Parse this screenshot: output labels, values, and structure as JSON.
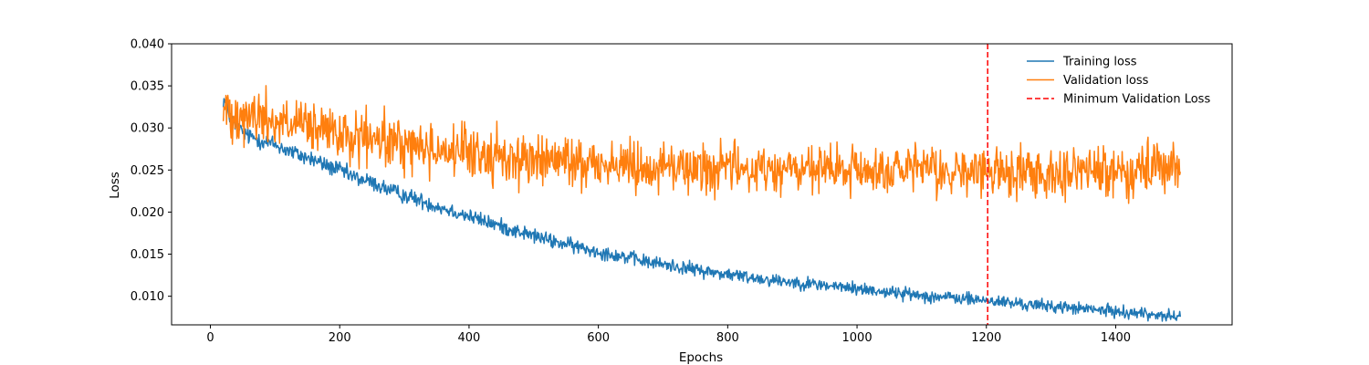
{
  "chart_data": {
    "type": "line",
    "title": "",
    "xlabel": "Epochs",
    "ylabel": "Loss",
    "xlim": [
      -60,
      1580
    ],
    "ylim": [
      0.0066,
      0.04
    ],
    "xticks": [
      0,
      200,
      400,
      600,
      800,
      1000,
      1200,
      1400
    ],
    "xtick_labels": [
      "0",
      "200",
      "400",
      "600",
      "800",
      "1000",
      "1200",
      "1400"
    ],
    "yticks": [
      0.01,
      0.015,
      0.02,
      0.025,
      0.03,
      0.035,
      0.04
    ],
    "ytick_labels": [
      "0.010",
      "0.015",
      "0.020",
      "0.025",
      "0.030",
      "0.035",
      "0.040"
    ],
    "grid": false,
    "legend_position": "top-right",
    "series": [
      {
        "name": "Training loss",
        "color": "#1f77b4",
        "line_style": "solid",
        "x": [
          20,
          30,
          40,
          50,
          60,
          70,
          80,
          90,
          100,
          120,
          140,
          160,
          180,
          200,
          220,
          250,
          280,
          300,
          320,
          350,
          380,
          400,
          420,
          450,
          480,
          500,
          530,
          560,
          600,
          640,
          680,
          700,
          740,
          780,
          800,
          850,
          900,
          950,
          1000,
          1050,
          1100,
          1150,
          1200,
          1250,
          1300,
          1350,
          1400,
          1450,
          1500
        ],
        "y": [
          0.0335,
          0.0315,
          0.03,
          0.0295,
          0.029,
          0.0288,
          0.0285,
          0.0282,
          0.028,
          0.0273,
          0.0267,
          0.0262,
          0.0255,
          0.025,
          0.0242,
          0.0235,
          0.0225,
          0.022,
          0.0215,
          0.0207,
          0.02,
          0.0195,
          0.019,
          0.0183,
          0.0176,
          0.0172,
          0.0165,
          0.016,
          0.0153,
          0.0147,
          0.014,
          0.0138,
          0.0133,
          0.0128,
          0.0126,
          0.0121,
          0.0117,
          0.0113,
          0.0109,
          0.0105,
          0.0101,
          0.0098,
          0.0095,
          0.0091,
          0.0088,
          0.0085,
          0.0082,
          0.0079,
          0.0075
        ],
        "noise_amplitude": 0.0008
      },
      {
        "name": "Validation loss",
        "color": "#ff7f0e",
        "line_style": "solid",
        "x": [
          20,
          40,
          60,
          80,
          100,
          150,
          200,
          250,
          300,
          350,
          400,
          450,
          500,
          600,
          700,
          800,
          900,
          1000,
          1100,
          1200,
          1300,
          1400,
          1500
        ],
        "y": [
          0.032,
          0.032,
          0.0315,
          0.0312,
          0.0308,
          0.03,
          0.029,
          0.0285,
          0.028,
          0.0275,
          0.027,
          0.0265,
          0.0262,
          0.0258,
          0.0254,
          0.0252,
          0.025,
          0.0249,
          0.0248,
          0.0247,
          0.0248,
          0.0249,
          0.025
        ],
        "noise_amplitude": 0.0024
      }
    ],
    "annotations": [
      {
        "name": "Minimum Validation Loss",
        "type": "vertical-line",
        "x": 1202,
        "color": "#ff0000",
        "line_style": "dashed"
      }
    ]
  }
}
